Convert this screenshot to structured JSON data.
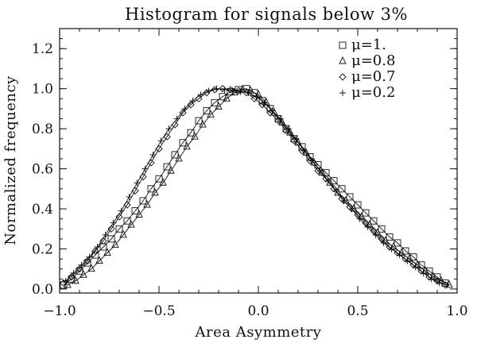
{
  "chart_data": {
    "type": "line",
    "title": "Histogram for signals below 3%",
    "xlabel": "Area Asymmetry",
    "ylabel": "Normalized frequency",
    "xlim": [
      -1.0,
      1.0
    ],
    "ylim": [
      -0.02,
      1.3
    ],
    "x_ticks": [
      -1.0,
      -0.5,
      0.0,
      0.5,
      1.0
    ],
    "x_tick_labels": [
      "−1.0",
      "−0.5",
      "0.0",
      "0.5",
      "1.0"
    ],
    "y_ticks": [
      0.0,
      0.2,
      0.4,
      0.6,
      0.8,
      1.0,
      1.2
    ],
    "y_tick_labels": [
      "0.0",
      "0.2",
      "0.4",
      "0.6",
      "0.8",
      "1.0",
      "1.2"
    ],
    "grid": false,
    "legend_position": "top-right",
    "series": [
      {
        "name": "μ=1.",
        "marker": "square",
        "x": [
          -0.98,
          -0.94,
          -0.9,
          -0.86,
          -0.82,
          -0.78,
          -0.74,
          -0.7,
          -0.66,
          -0.62,
          -0.58,
          -0.54,
          -0.5,
          -0.46,
          -0.42,
          -0.38,
          -0.34,
          -0.3,
          -0.26,
          -0.22,
          -0.18,
          -0.14,
          -0.1,
          -0.06,
          -0.02,
          0.02,
          0.06,
          0.1,
          0.14,
          0.18,
          0.22,
          0.26,
          0.3,
          0.34,
          0.38,
          0.42,
          0.46,
          0.5,
          0.54,
          0.58,
          0.62,
          0.66,
          0.7,
          0.74,
          0.78,
          0.82,
          0.86,
          0.9,
          0.94
        ],
        "y": [
          0.02,
          0.05,
          0.09,
          0.13,
          0.17,
          0.21,
          0.25,
          0.3,
          0.34,
          0.39,
          0.44,
          0.5,
          0.55,
          0.61,
          0.67,
          0.73,
          0.78,
          0.84,
          0.89,
          0.93,
          0.96,
          0.985,
          0.995,
          1.0,
          0.98,
          0.94,
          0.9,
          0.85,
          0.8,
          0.75,
          0.71,
          0.66,
          0.62,
          0.58,
          0.54,
          0.5,
          0.46,
          0.42,
          0.38,
          0.34,
          0.3,
          0.26,
          0.23,
          0.19,
          0.16,
          0.12,
          0.09,
          0.06,
          0.03
        ]
      },
      {
        "name": "μ=0.8",
        "marker": "triangle",
        "x": [
          -0.96,
          -0.92,
          -0.88,
          -0.84,
          -0.8,
          -0.76,
          -0.72,
          -0.68,
          -0.64,
          -0.6,
          -0.56,
          -0.52,
          -0.48,
          -0.44,
          -0.4,
          -0.36,
          -0.32,
          -0.28,
          -0.24,
          -0.2,
          -0.16,
          -0.12,
          -0.08,
          -0.04,
          0.0,
          0.04,
          0.08,
          0.12,
          0.16,
          0.2,
          0.24,
          0.28,
          0.32,
          0.36,
          0.4,
          0.44,
          0.48,
          0.52,
          0.56,
          0.6,
          0.64,
          0.68,
          0.72,
          0.76,
          0.8,
          0.84,
          0.88,
          0.92,
          0.96
        ],
        "y": [
          0.02,
          0.04,
          0.07,
          0.1,
          0.14,
          0.18,
          0.22,
          0.27,
          0.32,
          0.37,
          0.42,
          0.48,
          0.53,
          0.59,
          0.65,
          0.71,
          0.76,
          0.82,
          0.87,
          0.91,
          0.95,
          0.98,
          0.995,
          0.99,
          0.97,
          0.93,
          0.88,
          0.83,
          0.78,
          0.73,
          0.68,
          0.63,
          0.58,
          0.53,
          0.48,
          0.44,
          0.4,
          0.36,
          0.32,
          0.28,
          0.24,
          0.21,
          0.18,
          0.15,
          0.12,
          0.09,
          0.06,
          0.04,
          0.02
        ]
      },
      {
        "name": "μ=0.7",
        "marker": "diamond",
        "x": [
          -0.98,
          -0.94,
          -0.9,
          -0.86,
          -0.82,
          -0.78,
          -0.74,
          -0.7,
          -0.66,
          -0.62,
          -0.58,
          -0.54,
          -0.5,
          -0.46,
          -0.42,
          -0.38,
          -0.34,
          -0.3,
          -0.26,
          -0.22,
          -0.18,
          -0.14,
          -0.1,
          -0.06,
          -0.02,
          0.02,
          0.06,
          0.1,
          0.14,
          0.18,
          0.22,
          0.26,
          0.3,
          0.34,
          0.38,
          0.42,
          0.46,
          0.5,
          0.54,
          0.58,
          0.62,
          0.66,
          0.7,
          0.74,
          0.78,
          0.82,
          0.86,
          0.9,
          0.94
        ],
        "y": [
          0.03,
          0.06,
          0.1,
          0.14,
          0.19,
          0.24,
          0.3,
          0.36,
          0.42,
          0.49,
          0.56,
          0.63,
          0.7,
          0.76,
          0.82,
          0.88,
          0.92,
          0.95,
          0.98,
          0.995,
          1.0,
          0.995,
          0.99,
          0.98,
          0.95,
          0.92,
          0.88,
          0.84,
          0.79,
          0.74,
          0.69,
          0.64,
          0.59,
          0.55,
          0.5,
          0.45,
          0.41,
          0.37,
          0.33,
          0.29,
          0.25,
          0.21,
          0.18,
          0.15,
          0.12,
          0.09,
          0.06,
          0.04,
          0.02
        ]
      },
      {
        "name": "μ=0.2",
        "marker": "plus",
        "x": [
          -0.97,
          -0.93,
          -0.89,
          -0.85,
          -0.81,
          -0.77,
          -0.73,
          -0.69,
          -0.65,
          -0.61,
          -0.57,
          -0.53,
          -0.49,
          -0.45,
          -0.41,
          -0.37,
          -0.33,
          -0.29,
          -0.25,
          -0.21,
          -0.17,
          -0.13,
          -0.09,
          -0.05,
          -0.01,
          0.03,
          0.07,
          0.11,
          0.15,
          0.19,
          0.23,
          0.27,
          0.31,
          0.35,
          0.39,
          0.43,
          0.47,
          0.51,
          0.55,
          0.59,
          0.63,
          0.67,
          0.71,
          0.75,
          0.79,
          0.83,
          0.87,
          0.91,
          0.95
        ],
        "y": [
          0.04,
          0.08,
          0.12,
          0.16,
          0.21,
          0.27,
          0.33,
          0.39,
          0.46,
          0.53,
          0.6,
          0.67,
          0.74,
          0.8,
          0.85,
          0.9,
          0.94,
          0.97,
          0.99,
          1.0,
          0.995,
          0.99,
          0.985,
          0.98,
          0.96,
          0.93,
          0.89,
          0.85,
          0.8,
          0.75,
          0.69,
          0.64,
          0.59,
          0.54,
          0.49,
          0.44,
          0.4,
          0.35,
          0.31,
          0.27,
          0.23,
          0.2,
          0.17,
          0.14,
          0.11,
          0.08,
          0.05,
          0.03,
          0.02
        ]
      }
    ]
  }
}
